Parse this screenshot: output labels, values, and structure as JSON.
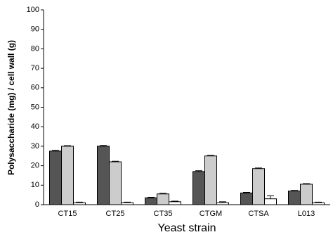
{
  "chart_data": {
    "type": "bar",
    "y_label": "Polysaccharide (mg) / cell wall (g)",
    "x_label": "Yeast strain",
    "categories": [
      "CT15",
      "CT25",
      "CT35",
      "CTGM",
      "CTSA",
      "L013"
    ],
    "series": [
      {
        "color": "#555555",
        "values": [
          27.5,
          30,
          3.5,
          17,
          6,
          7
        ],
        "errors": [
          0.4,
          0.4,
          0.3,
          0.4,
          0.3,
          0.3
        ]
      },
      {
        "color": "#cccccc",
        "values": [
          30,
          22,
          5.5,
          25,
          18.5,
          10.5
        ],
        "errors": [
          0.3,
          0.3,
          0.3,
          0.3,
          0.3,
          0.3
        ]
      },
      {
        "color": "#ffffff",
        "values": [
          1,
          1,
          1.5,
          1,
          3,
          1
        ],
        "errors": [
          0.3,
          0.3,
          0.3,
          0.5,
          1.5,
          0.3
        ]
      }
    ],
    "ylim": [
      0,
      100
    ],
    "yticks": [
      0,
      10,
      20,
      30,
      40,
      50,
      60,
      70,
      80,
      90,
      100
    ]
  }
}
